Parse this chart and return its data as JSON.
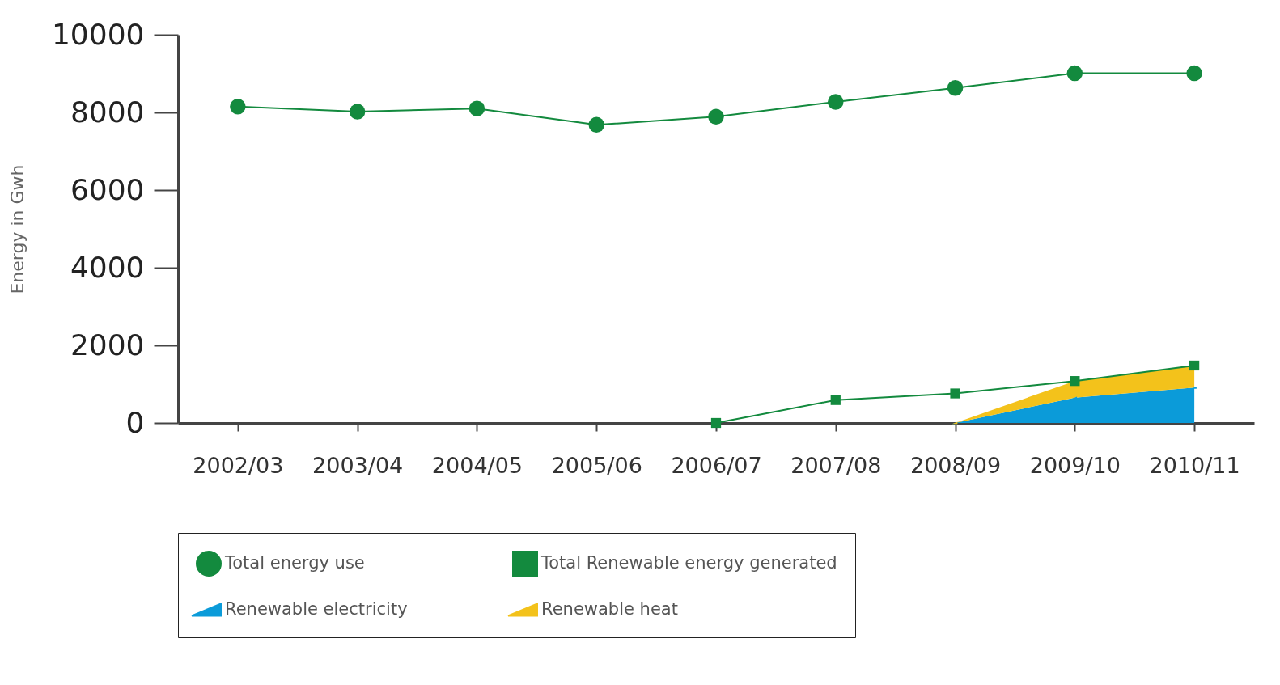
{
  "chart_data": {
    "type": "line",
    "ylabel": "Energy in Gwh",
    "categories": [
      "2002/03",
      "2003/04",
      "2004/05",
      "2005/06",
      "2006/07",
      "2007/08",
      "2008/09",
      "2009/10",
      "2010/11"
    ],
    "ylim": [
      0,
      10000
    ],
    "yticks": [
      0,
      2000,
      4000,
      6000,
      8000,
      10000
    ],
    "legend": "bottom",
    "stacked": true,
    "series": [
      {
        "name": "Total energy use",
        "type": "line",
        "marker": "circle",
        "color": "#138a3e",
        "values": [
          8150,
          8020,
          8100,
          7680,
          7890,
          8270,
          8630,
          9010,
          9010
        ]
      },
      {
        "name": "Total Renewable energy generated",
        "type": "line",
        "marker": "square",
        "color": "#138a3e",
        "values": [
          null,
          null,
          null,
          null,
          0,
          590,
          760,
          1080,
          1480
        ]
      },
      {
        "name": "Renewable electricity",
        "type": "area",
        "color": "#0b9bd9",
        "values": [
          null,
          null,
          null,
          null,
          null,
          null,
          0,
          650,
          910
        ]
      },
      {
        "name": "Renewable heat",
        "type": "area",
        "color": "#f3c21b",
        "values": [
          null,
          null,
          null,
          null,
          null,
          null,
          0,
          430,
          570
        ]
      }
    ]
  }
}
